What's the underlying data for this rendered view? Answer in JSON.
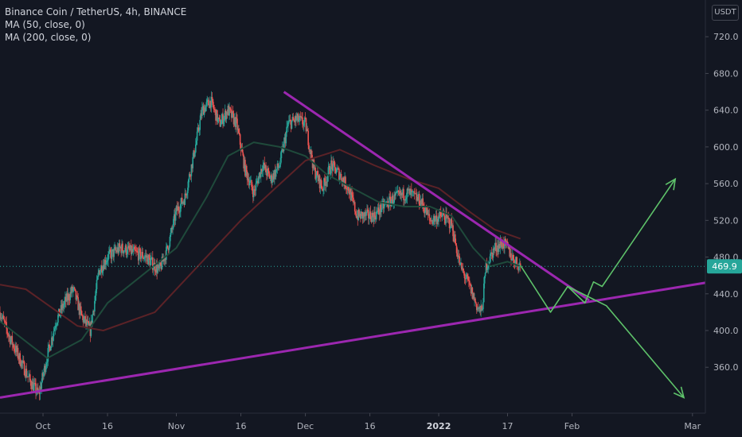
{
  "header": {
    "symbol_line": "Binance Coin / TetherUS, 4h, BINANCE",
    "ma50_label": "MA (50, close, 0)",
    "ma200_label": "MA (200, close, 0)",
    "currency": "USDT"
  },
  "colors": {
    "background": "#131722",
    "up": "#26a69a",
    "down": "#ef5350",
    "ma50": "#1f4a3b",
    "ma200": "#5b2227",
    "trendline": "#9c27b0",
    "projection": "#5ec26a",
    "axis_text": "#b2b5be",
    "price_tag": "#26a69a"
  },
  "chart_data": {
    "type": "candlestick",
    "title": "Binance Coin / TetherUS, 4h, BINANCE",
    "ylim": [
      310,
      760
    ],
    "y_ticks": [
      360,
      400,
      440,
      480,
      520,
      560,
      600,
      640,
      680,
      720
    ],
    "y_tick_labels": [
      "360.0",
      "400.0",
      "440.0",
      "480.0",
      "520.0",
      "560.0",
      "600.0",
      "640.0",
      "680.0",
      "720.0"
    ],
    "xlim": [
      "2021-09-21",
      "2022-03-04"
    ],
    "x_ticks": [
      {
        "date": "2021-10-01",
        "label": "Oct",
        "bold": false
      },
      {
        "date": "2021-10-16",
        "label": "16",
        "bold": false
      },
      {
        "date": "2021-11-01",
        "label": "Nov",
        "bold": false
      },
      {
        "date": "2021-11-16",
        "label": "16",
        "bold": false
      },
      {
        "date": "2021-12-01",
        "label": "Dec",
        "bold": false
      },
      {
        "date": "2021-12-16",
        "label": "16",
        "bold": false
      },
      {
        "date": "2022-01-01",
        "label": "2022",
        "bold": true
      },
      {
        "date": "2022-01-17",
        "label": "17",
        "bold": false
      },
      {
        "date": "2022-02-01",
        "label": "Feb",
        "bold": false
      },
      {
        "date": "2022-03-01",
        "label": "Mar",
        "bold": false
      }
    ],
    "last_price": 469.9,
    "last_price_label": "469.9",
    "grid": false,
    "price_path": [
      [
        "2021-09-21",
        420
      ],
      [
        "2021-09-23",
        395
      ],
      [
        "2021-09-25",
        375
      ],
      [
        "2021-09-28",
        345
      ],
      [
        "2021-09-30",
        330
      ],
      [
        "2021-10-02",
        372
      ],
      [
        "2021-10-04",
        410
      ],
      [
        "2021-10-06",
        430
      ],
      [
        "2021-10-08",
        445
      ],
      [
        "2021-10-10",
        415
      ],
      [
        "2021-10-12",
        400
      ],
      [
        "2021-10-14",
        465
      ],
      [
        "2021-10-16",
        480
      ],
      [
        "2021-10-19",
        490
      ],
      [
        "2021-10-22",
        485
      ],
      [
        "2021-10-25",
        480
      ],
      [
        "2021-10-28",
        465
      ],
      [
        "2021-10-30",
        490
      ],
      [
        "2021-11-01",
        530
      ],
      [
        "2021-11-03",
        545
      ],
      [
        "2021-11-05",
        590
      ],
      [
        "2021-11-07",
        640
      ],
      [
        "2021-11-09",
        650
      ],
      [
        "2021-11-11",
        625
      ],
      [
        "2021-11-13",
        640
      ],
      [
        "2021-11-15",
        625
      ],
      [
        "2021-11-17",
        575
      ],
      [
        "2021-11-19",
        550
      ],
      [
        "2021-11-21",
        580
      ],
      [
        "2021-11-23",
        565
      ],
      [
        "2021-11-25",
        580
      ],
      [
        "2021-11-27",
        625
      ],
      [
        "2021-11-29",
        630
      ],
      [
        "2021-12-01",
        625
      ],
      [
        "2021-12-03",
        575
      ],
      [
        "2021-12-05",
        555
      ],
      [
        "2021-12-07",
        580
      ],
      [
        "2021-12-09",
        570
      ],
      [
        "2021-12-11",
        555
      ],
      [
        "2021-12-13",
        525
      ],
      [
        "2021-12-15",
        525
      ],
      [
        "2021-12-17",
        525
      ],
      [
        "2021-12-19",
        535
      ],
      [
        "2021-12-22",
        545
      ],
      [
        "2021-12-25",
        550
      ],
      [
        "2021-12-28",
        540
      ],
      [
        "2021-12-30",
        520
      ],
      [
        "2022-01-02",
        525
      ],
      [
        "2022-01-04",
        515
      ],
      [
        "2022-01-06",
        470
      ],
      [
        "2022-01-08",
        450
      ],
      [
        "2022-01-10",
        425
      ],
      [
        "2022-01-11",
        420
      ],
      [
        "2022-01-12",
        470
      ],
      [
        "2022-01-14",
        490
      ],
      [
        "2022-01-16",
        495
      ],
      [
        "2022-01-17",
        490
      ],
      [
        "2022-01-18",
        480
      ],
      [
        "2022-01-20",
        469.9
      ]
    ],
    "series": [
      {
        "name": "MA (50, close, 0)",
        "x": [
          "2021-09-21",
          "2021-10-02",
          "2021-10-10",
          "2021-10-16",
          "2021-10-24",
          "2021-11-01",
          "2021-11-08",
          "2021-11-13",
          "2021-11-19",
          "2021-11-25",
          "2021-12-01",
          "2021-12-06",
          "2021-12-12",
          "2021-12-18",
          "2021-12-24",
          "2021-12-30",
          "2022-01-04",
          "2022-01-09",
          "2022-01-13",
          "2022-01-17",
          "2022-01-20"
        ],
        "values": [
          410,
          370,
          390,
          430,
          460,
          490,
          545,
          590,
          605,
          600,
          590,
          570,
          555,
          540,
          535,
          535,
          525,
          490,
          470,
          475,
          470
        ]
      },
      {
        "name": "MA (200, close, 0)",
        "x": [
          "2021-09-21",
          "2021-09-27",
          "2021-10-03",
          "2021-10-09",
          "2021-10-15",
          "2021-10-21",
          "2021-10-27",
          "2021-11-02",
          "2021-11-08",
          "2021-11-16",
          "2021-11-24",
          "2021-12-01",
          "2021-12-09",
          "2021-12-17",
          "2021-12-25",
          "2022-01-01",
          "2022-01-08",
          "2022-01-14",
          "2022-01-20"
        ],
        "values": [
          450,
          445,
          425,
          405,
          400,
          410,
          420,
          450,
          480,
          520,
          555,
          585,
          597,
          580,
          565,
          555,
          530,
          510,
          500
        ]
      }
    ],
    "annotations": [
      {
        "name": "descending-trendline",
        "points": [
          [
            "2021-11-26",
            660
          ],
          [
            "2022-02-05",
            433
          ]
        ]
      },
      {
        "name": "ascending-trendline",
        "points": [
          [
            "2021-09-21",
            327
          ],
          [
            "2022-03-04",
            452
          ]
        ]
      },
      {
        "name": "projection-up",
        "points": [
          [
            "2022-01-20",
            471
          ],
          [
            "2022-01-27",
            420
          ],
          [
            "2022-01-31",
            448
          ],
          [
            "2022-02-04",
            430
          ],
          [
            "2022-02-06",
            453
          ],
          [
            "2022-02-08",
            448
          ],
          [
            "2022-02-25",
            565
          ]
        ]
      },
      {
        "name": "projection-down",
        "points": [
          [
            "2022-01-31",
            448
          ],
          [
            "2022-02-09",
            427
          ],
          [
            "2022-02-27",
            327
          ]
        ]
      }
    ]
  }
}
